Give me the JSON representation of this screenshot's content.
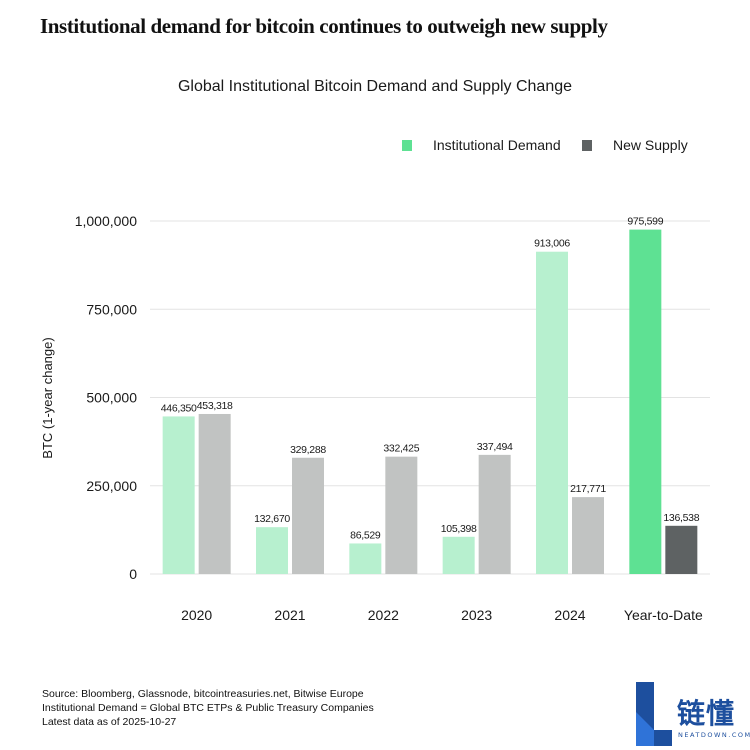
{
  "headline": "Institutional demand for bitcoin continues to outweigh new supply",
  "footer": {
    "source": "Source: Bloomberg, Glassnode, bitcointreasuries.net, Bitwise Europe",
    "definition": "Institutional Demand = Global BTC ETPs & Public Treasury Companies",
    "asof": "Latest data as of 2025-10-27"
  },
  "logo": {
    "text": "链懂",
    "sub": "NEATDOWN.COM"
  },
  "colors": {
    "demand": "#b7f0cf",
    "demand_highlight": "#5ee193",
    "supply": "#c1c3c2",
    "supply_highlight": "#5e6263",
    "legend_demand": "#5ee193",
    "legend_supply": "#5e6263"
  },
  "chart_data": {
    "type": "bar",
    "title": "Global Institutional Bitcoin Demand and Supply Change",
    "ylabel": "BTC (1-year change)",
    "xlabel": "",
    "categories": [
      "2020",
      "2021",
      "2022",
      "2023",
      "2024",
      "Year-to-Date"
    ],
    "series": [
      {
        "name": "Institutional Demand",
        "values": [
          446350,
          132670,
          86529,
          105398,
          913006,
          975599
        ]
      },
      {
        "name": "New Supply",
        "values": [
          453318,
          329288,
          332425,
          337494,
          217771,
          136538
        ]
      }
    ],
    "value_labels": {
      "Institutional Demand": [
        "446,350",
        "132,670",
        "86,529",
        "105,398",
        "913,006",
        "975,599"
      ],
      "New Supply": [
        "453,318",
        "329,288",
        "332,425",
        "337,494",
        "217,771",
        "136,538"
      ]
    },
    "highlight_category": "Year-to-Date",
    "ylim": [
      0,
      1000000
    ],
    "yticks": [
      0,
      250000,
      500000,
      750000,
      1000000
    ],
    "ytick_labels": [
      "0",
      "250,000",
      "500,000",
      "750,000",
      "1,000,000"
    ],
    "grid": true,
    "legend_position": "top-right"
  }
}
